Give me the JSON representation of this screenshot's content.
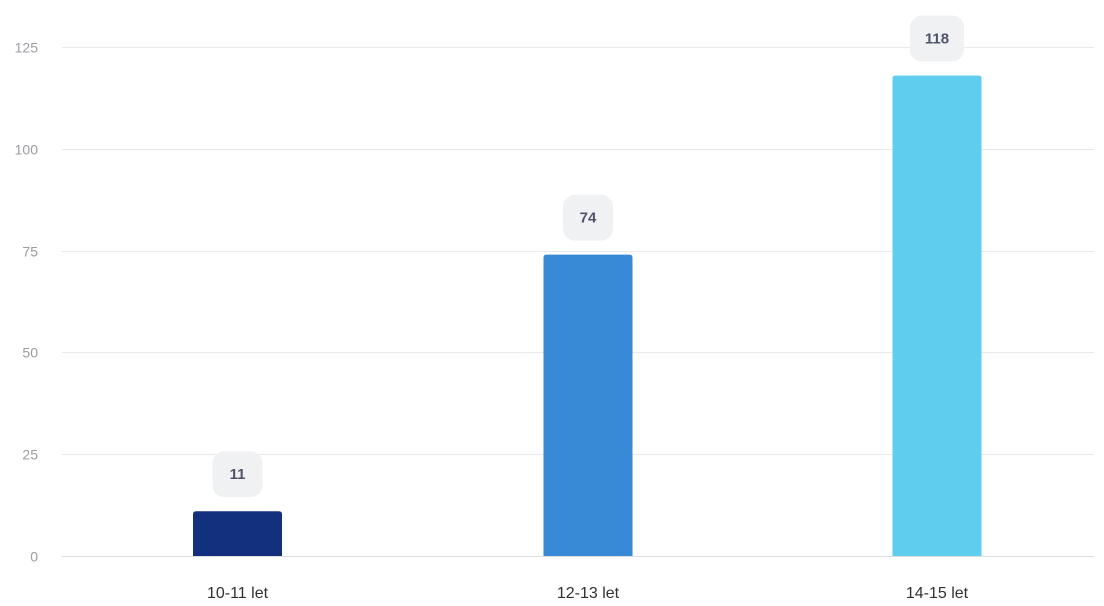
{
  "chart_data": {
    "type": "bar",
    "title": "",
    "xlabel": "",
    "ylabel": "",
    "categories": [
      "10-11 let",
      "12-13 let",
      "14-15 let"
    ],
    "values": [
      11,
      74,
      118
    ],
    "data_labels": [
      "11",
      "74",
      "118"
    ],
    "colors": [
      "#13307f",
      "#3889d6",
      "#5ecdee"
    ],
    "ylim": [
      0,
      125
    ],
    "yticks": [
      0,
      25,
      50,
      75,
      100,
      125
    ],
    "ytick_labels": [
      "0",
      "25",
      "50",
      "75",
      "100",
      "125"
    ],
    "grid": true,
    "legend": "none"
  }
}
